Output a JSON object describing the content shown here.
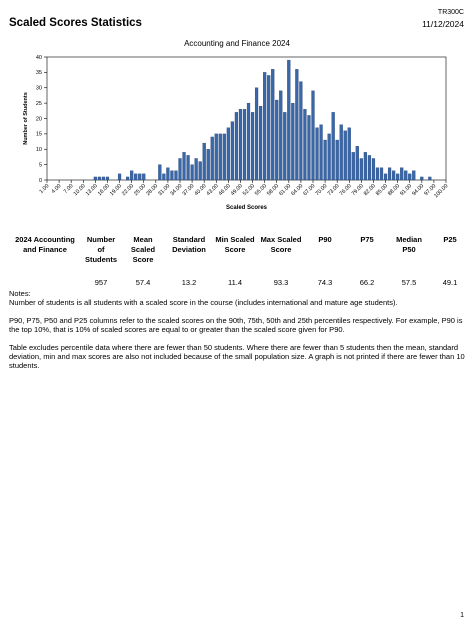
{
  "header": {
    "report_code": "TR300C",
    "title": "Scaled Scores Statistics",
    "date": "11/12/2024"
  },
  "chart_data": {
    "type": "bar",
    "title": "Accounting and Finance 2024",
    "xlabel": "Scaled Scores",
    "ylabel": "Number of Students",
    "ylim": [
      0,
      40
    ],
    "yticks": [
      0,
      5,
      10,
      15,
      20,
      25,
      30,
      35,
      40
    ],
    "grid": false,
    "categories": [
      "1.00",
      "4.00",
      "7.00",
      "10.00",
      "13.00",
      "16.00",
      "19.00",
      "22.00",
      "25.00",
      "28.00",
      "31.00",
      "34.00",
      "37.00",
      "40.00",
      "43.00",
      "46.00",
      "49.00",
      "52.00",
      "55.00",
      "58.00",
      "61.00",
      "64.00",
      "67.00",
      "70.00",
      "73.00",
      "76.00",
      "79.00",
      "82.00",
      "85.00",
      "88.00",
      "91.00",
      "94.00",
      "97.00",
      "100.00"
    ],
    "bars": [
      {
        "x": 13,
        "y": 1
      },
      {
        "x": 14,
        "y": 1
      },
      {
        "x": 15,
        "y": 1
      },
      {
        "x": 16,
        "y": 1
      },
      {
        "x": 19,
        "y": 2
      },
      {
        "x": 21,
        "y": 1
      },
      {
        "x": 22,
        "y": 3
      },
      {
        "x": 23,
        "y": 2
      },
      {
        "x": 24,
        "y": 2
      },
      {
        "x": 25,
        "y": 2
      },
      {
        "x": 29,
        "y": 5
      },
      {
        "x": 30,
        "y": 2
      },
      {
        "x": 31,
        "y": 4
      },
      {
        "x": 32,
        "y": 3
      },
      {
        "x": 33,
        "y": 3
      },
      {
        "x": 34,
        "y": 7
      },
      {
        "x": 35,
        "y": 9
      },
      {
        "x": 36,
        "y": 8
      },
      {
        "x": 37,
        "y": 5
      },
      {
        "x": 38,
        "y": 7
      },
      {
        "x": 39,
        "y": 6
      },
      {
        "x": 40,
        "y": 12
      },
      {
        "x": 41,
        "y": 10
      },
      {
        "x": 42,
        "y": 14
      },
      {
        "x": 43,
        "y": 15
      },
      {
        "x": 44,
        "y": 15
      },
      {
        "x": 45,
        "y": 15
      },
      {
        "x": 46,
        "y": 17
      },
      {
        "x": 47,
        "y": 19
      },
      {
        "x": 48,
        "y": 22
      },
      {
        "x": 49,
        "y": 23
      },
      {
        "x": 50,
        "y": 23
      },
      {
        "x": 51,
        "y": 25
      },
      {
        "x": 52,
        "y": 22
      },
      {
        "x": 53,
        "y": 30
      },
      {
        "x": 54,
        "y": 24
      },
      {
        "x": 55,
        "y": 35
      },
      {
        "x": 56,
        "y": 34
      },
      {
        "x": 57,
        "y": 36
      },
      {
        "x": 58,
        "y": 26
      },
      {
        "x": 59,
        "y": 29
      },
      {
        "x": 60,
        "y": 22
      },
      {
        "x": 61,
        "y": 39
      },
      {
        "x": 62,
        "y": 25
      },
      {
        "x": 63,
        "y": 36
      },
      {
        "x": 64,
        "y": 32
      },
      {
        "x": 65,
        "y": 23
      },
      {
        "x": 66,
        "y": 21
      },
      {
        "x": 67,
        "y": 29
      },
      {
        "x": 68,
        "y": 17
      },
      {
        "x": 69,
        "y": 18
      },
      {
        "x": 70,
        "y": 13
      },
      {
        "x": 71,
        "y": 15
      },
      {
        "x": 72,
        "y": 22
      },
      {
        "x": 73,
        "y": 13
      },
      {
        "x": 74,
        "y": 18
      },
      {
        "x": 75,
        "y": 16
      },
      {
        "x": 76,
        "y": 17
      },
      {
        "x": 77,
        "y": 9
      },
      {
        "x": 78,
        "y": 11
      },
      {
        "x": 79,
        "y": 7
      },
      {
        "x": 80,
        "y": 9
      },
      {
        "x": 81,
        "y": 8
      },
      {
        "x": 82,
        "y": 7
      },
      {
        "x": 83,
        "y": 4
      },
      {
        "x": 84,
        "y": 4
      },
      {
        "x": 85,
        "y": 2
      },
      {
        "x": 86,
        "y": 4
      },
      {
        "x": 87,
        "y": 3
      },
      {
        "x": 88,
        "y": 2
      },
      {
        "x": 89,
        "y": 4
      },
      {
        "x": 90,
        "y": 3
      },
      {
        "x": 91,
        "y": 2
      },
      {
        "x": 92,
        "y": 3
      },
      {
        "x": 94,
        "y": 1
      },
      {
        "x": 96,
        "y": 1
      }
    ],
    "xlim": [
      1,
      100
    ],
    "bar_color": "#3A67A8",
    "bar_edge_color": "#1B3A6B"
  },
  "stats_table": {
    "headers": [
      "2024 Accounting and Finance",
      "Number of Students",
      "Mean Scaled Score",
      "Standard Deviation",
      "Min Scaled Score",
      "Max Scaled Score",
      "P90",
      "P75",
      "Median P50",
      "P25"
    ],
    "row": [
      "",
      "957",
      "57.4",
      "13.2",
      "11.4",
      "93.3",
      "74.3",
      "66.2",
      "57.5",
      "49.1"
    ]
  },
  "notes": {
    "heading": "Notes:",
    "line1": "Number of students is all students with a scaled score in the course (includes international and mature age students).",
    "line2": "P90, P75, P50 and P25 columns refer to the scaled scores on the 90th, 75th, 50th and 25th percentiles respectively.  For example, P90 is the top 10%, that is 10% of scaled scores are equal to or greater than the scaled score given for P90.",
    "line3": "Table excludes percentile data where there are fewer than 50 students.  Where there are fewer than 5 students then the mean, standard deviation, min and max scores are also not included because of the small population size.  A graph is not printed if there are fewer than 10 students."
  },
  "footer": {
    "page_number": "1"
  }
}
